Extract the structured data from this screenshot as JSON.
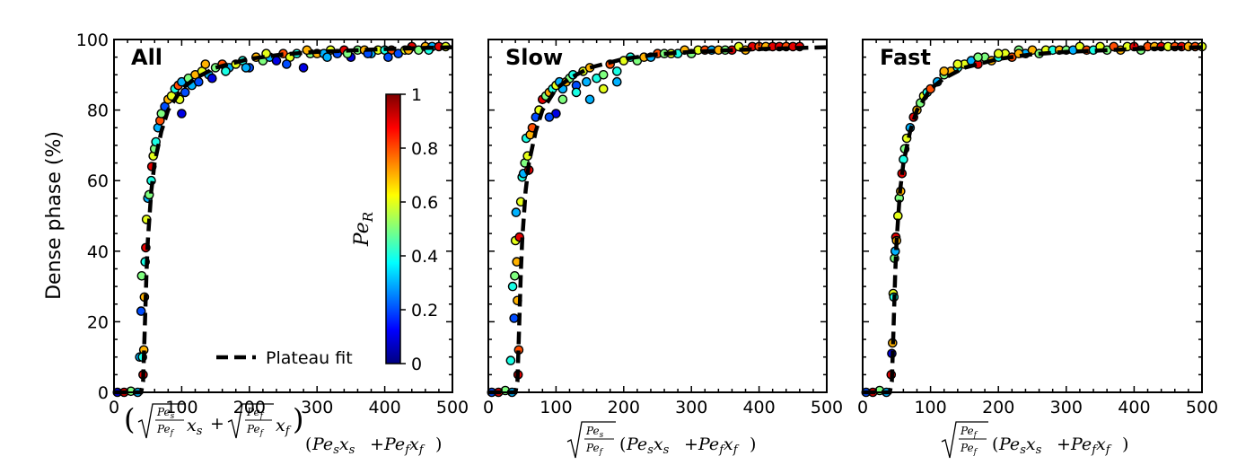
{
  "figure": {
    "ylabel": "Dense phase (%)",
    "legend_label": "Plateau fit",
    "colorbar": {
      "label": "Pe",
      "label_sub": "R",
      "ticks": [
        "0",
        "0.2",
        "0.4",
        "0.6",
        "0.8",
        "1"
      ],
      "colors": [
        "#00007f",
        "#0000ff",
        "#007fff",
        "#00ffff",
        "#7fff7f",
        "#ffff00",
        "#ff7f00",
        "#ff0000",
        "#7f0000"
      ]
    },
    "x_ticks": [
      "0",
      "100",
      "200",
      "300",
      "400",
      "500"
    ],
    "y_ticks": [
      "0",
      "20",
      "40",
      "60",
      "80",
      "100"
    ]
  },
  "chart_data": [
    {
      "type": "scatter",
      "title": "All",
      "xlabel": "(√(Pe_s/Pe_f) x_s + √(Pe_f/Pe_f) x_f)(Pe_s x_s + Pe_f x_f)",
      "xlim": [
        0,
        500
      ],
      "ylim": [
        0,
        100
      ],
      "grid": false,
      "color_by": "Pe_R",
      "fit": {
        "name": "Plateau fit",
        "x": [
          0,
          20,
          40,
          43,
          45,
          48,
          50,
          55,
          60,
          70,
          80,
          100,
          120,
          150,
          200,
          250,
          300,
          400,
          500
        ],
        "y": [
          0,
          0,
          0,
          3,
          15,
          34,
          43,
          57,
          65,
          74,
          80,
          86,
          89,
          92,
          94.5,
          95.8,
          96.5,
          97.3,
          97.8
        ]
      },
      "points": [
        [
          5,
          0,
          0.1
        ],
        [
          15,
          0,
          0.9
        ],
        [
          25,
          0.3,
          0.5
        ],
        [
          35,
          0,
          0.3
        ],
        [
          43,
          5,
          0.9
        ],
        [
          44,
          12,
          0.7
        ],
        [
          45,
          27,
          0.7
        ],
        [
          46,
          37,
          0.4
        ],
        [
          47,
          41,
          0.9
        ],
        [
          48,
          49,
          0.6
        ],
        [
          50,
          55,
          0.3
        ],
        [
          52,
          56,
          0.5
        ],
        [
          55,
          60,
          0.4
        ],
        [
          56,
          64,
          0.9
        ],
        [
          58,
          67,
          0.6
        ],
        [
          60,
          69,
          0.5
        ],
        [
          62,
          71,
          0.4
        ],
        [
          65,
          75,
          0.3
        ],
        [
          68,
          77,
          0.8
        ],
        [
          70,
          79,
          0.5
        ],
        [
          75,
          81,
          0.2
        ],
        [
          80,
          83,
          0.7
        ],
        [
          85,
          84,
          0.6
        ],
        [
          90,
          86,
          0.4
        ],
        [
          95,
          87,
          0.8
        ],
        [
          100,
          88,
          0.3
        ],
        [
          100,
          79,
          0.1
        ],
        [
          105,
          85,
          0.2
        ],
        [
          110,
          89,
          0.5
        ],
        [
          115,
          87,
          0.3
        ],
        [
          120,
          90,
          0.7
        ],
        [
          125,
          88,
          0.2
        ],
        [
          130,
          91,
          0.6
        ],
        [
          140,
          90,
          0.3
        ],
        [
          145,
          89,
          0.1
        ],
        [
          150,
          92,
          0.5
        ],
        [
          160,
          93,
          0.8
        ],
        [
          170,
          92,
          0.3
        ],
        [
          180,
          93,
          0.6
        ],
        [
          190,
          94,
          0.4
        ],
        [
          200,
          92,
          0.2
        ],
        [
          210,
          95,
          0.7
        ],
        [
          220,
          94,
          0.5
        ],
        [
          230,
          95,
          0.3
        ],
        [
          240,
          94,
          0.1
        ],
        [
          250,
          96,
          0.8
        ],
        [
          260,
          95,
          0.6
        ],
        [
          270,
          96,
          0.4
        ],
        [
          280,
          92,
          0.1
        ],
        [
          290,
          96,
          0.5
        ],
        [
          300,
          96,
          0.7
        ],
        [
          310,
          96,
          0.3
        ],
        [
          320,
          97,
          0.6
        ],
        [
          330,
          96,
          0.2
        ],
        [
          340,
          97,
          0.9
        ],
        [
          350,
          95,
          0.1
        ],
        [
          360,
          97,
          0.5
        ],
        [
          370,
          97,
          0.7
        ],
        [
          380,
          96,
          0.3
        ],
        [
          390,
          97,
          0.6
        ],
        [
          400,
          97,
          0.4
        ],
        [
          410,
          97,
          0.8
        ],
        [
          420,
          96,
          0.2
        ],
        [
          430,
          97,
          0.6
        ],
        [
          440,
          98,
          0.9
        ],
        [
          450,
          97,
          0.5
        ],
        [
          460,
          98,
          0.7
        ],
        [
          470,
          98,
          0.3
        ],
        [
          480,
          98,
          0.9
        ],
        [
          490,
          98,
          0.6
        ],
        [
          40,
          23,
          0.2
        ],
        [
          38,
          10,
          0.3
        ],
        [
          41,
          33,
          0.5
        ],
        [
          42,
          10,
          0.4
        ],
        [
          97,
          83,
          0.6
        ],
        [
          135,
          93,
          0.7
        ],
        [
          165,
          91,
          0.4
        ],
        [
          195,
          92,
          0.3
        ],
        [
          225,
          96,
          0.6
        ],
        [
          255,
          93,
          0.2
        ],
        [
          285,
          97,
          0.7
        ],
        [
          315,
          95,
          0.3
        ],
        [
          345,
          96,
          0.5
        ],
        [
          375,
          96,
          0.2
        ],
        [
          405,
          95,
          0.2
        ],
        [
          435,
          97,
          0.7
        ],
        [
          465,
          97,
          0.4
        ]
      ]
    },
    {
      "type": "scatter",
      "title": "Slow",
      "xlabel": "√(Pe_s/Pe_f) (Pe_s x_s + Pe_f x_f)",
      "xlim": [
        0,
        500
      ],
      "ylim": [
        0,
        100
      ],
      "grid": false,
      "color_by": "Pe_R",
      "fit": {
        "name": "Plateau fit",
        "x": [
          0,
          20,
          40,
          43,
          45,
          48,
          50,
          55,
          60,
          70,
          80,
          100,
          120,
          150,
          200,
          250,
          300,
          400,
          500
        ],
        "y": [
          0,
          0,
          0,
          3,
          15,
          34,
          43,
          57,
          65,
          74,
          80,
          86,
          89,
          92,
          94.5,
          95.8,
          96.5,
          97.3,
          97.8
        ]
      },
      "points": [
        [
          5,
          0,
          0.2
        ],
        [
          15,
          0,
          0.9
        ],
        [
          25,
          0.5,
          0.5
        ],
        [
          35,
          0,
          0.3
        ],
        [
          33,
          9,
          0.4
        ],
        [
          38,
          21,
          0.2
        ],
        [
          36,
          30,
          0.4
        ],
        [
          39,
          33,
          0.5
        ],
        [
          40,
          43,
          0.6
        ],
        [
          42,
          37,
          0.7
        ],
        [
          41,
          51,
          0.3
        ],
        [
          43,
          26,
          0.7
        ],
        [
          44,
          5,
          0.9
        ],
        [
          45,
          12,
          0.8
        ],
        [
          46,
          44,
          0.9
        ],
        [
          48,
          54,
          0.6
        ],
        [
          50,
          61,
          0.4
        ],
        [
          52,
          62,
          0.3
        ],
        [
          54,
          65,
          0.5
        ],
        [
          56,
          72,
          0.4
        ],
        [
          58,
          67,
          0.6
        ],
        [
          60,
          63,
          0.9
        ],
        [
          62,
          73,
          0.7
        ],
        [
          65,
          75,
          0.8
        ],
        [
          70,
          78,
          0.2
        ],
        [
          75,
          80,
          0.6
        ],
        [
          80,
          83,
          0.9
        ],
        [
          85,
          84,
          0.5
        ],
        [
          90,
          85,
          0.7
        ],
        [
          95,
          86,
          0.4
        ],
        [
          100,
          79,
          0.1
        ],
        [
          100,
          87,
          0.6
        ],
        [
          105,
          88,
          0.3
        ],
        [
          110,
          86,
          0.3
        ],
        [
          115,
          88,
          0.7
        ],
        [
          120,
          89,
          0.5
        ],
        [
          125,
          90,
          0.4
        ],
        [
          130,
          87,
          0.2
        ],
        [
          140,
          91,
          0.6
        ],
        [
          145,
          88,
          0.3
        ],
        [
          150,
          92,
          0.7
        ],
        [
          160,
          89,
          0.4
        ],
        [
          170,
          90,
          0.5
        ],
        [
          180,
          93,
          0.8
        ],
        [
          190,
          88,
          0.3
        ],
        [
          200,
          94,
          0.6
        ],
        [
          210,
          95,
          0.4
        ],
        [
          220,
          94,
          0.5
        ],
        [
          230,
          95,
          0.7
        ],
        [
          240,
          95,
          0.3
        ],
        [
          250,
          96,
          0.8
        ],
        [
          260,
          96,
          0.5
        ],
        [
          270,
          96,
          0.6
        ],
        [
          280,
          96,
          0.4
        ],
        [
          290,
          97,
          0.7
        ],
        [
          300,
          96,
          0.5
        ],
        [
          310,
          97,
          0.6
        ],
        [
          320,
          97,
          0.8
        ],
        [
          330,
          97,
          0.3
        ],
        [
          340,
          97,
          0.7
        ],
        [
          350,
          97,
          0.5
        ],
        [
          360,
          97,
          0.9
        ],
        [
          370,
          98,
          0.6
        ],
        [
          380,
          97,
          0.7
        ],
        [
          390,
          98,
          0.9
        ],
        [
          400,
          98,
          0.8
        ],
        [
          410,
          98,
          0.7
        ],
        [
          420,
          98,
          0.9
        ],
        [
          430,
          98,
          0.9
        ],
        [
          440,
          98,
          0.8
        ],
        [
          450,
          98,
          0.9
        ],
        [
          460,
          98,
          0.9
        ],
        [
          90,
          78,
          0.2
        ],
        [
          110,
          83,
          0.5
        ],
        [
          130,
          85,
          0.4
        ],
        [
          150,
          83,
          0.3
        ],
        [
          170,
          86,
          0.6
        ],
        [
          190,
          91,
          0.4
        ]
      ]
    },
    {
      "type": "scatter",
      "title": "Fast",
      "xlabel": "√(Pe_f/Pe_f) (Pe_s x_s + Pe_f x_f)",
      "xlim": [
        0,
        500
      ],
      "ylim": [
        0,
        100
      ],
      "grid": false,
      "color_by": "Pe_R",
      "fit": {
        "name": "Plateau fit",
        "x": [
          0,
          20,
          40,
          43,
          45,
          48,
          50,
          55,
          60,
          70,
          80,
          100,
          120,
          150,
          200,
          250,
          300,
          400,
          500
        ],
        "y": [
          0,
          0,
          0,
          3,
          15,
          34,
          43,
          57,
          65,
          74,
          80,
          86,
          89,
          92,
          94.5,
          95.8,
          96.5,
          97.3,
          97.8
        ]
      },
      "points": [
        [
          5,
          0,
          0.2
        ],
        [
          15,
          0,
          0.9
        ],
        [
          25,
          0.5,
          0.5
        ],
        [
          35,
          0,
          0.3
        ],
        [
          42,
          5,
          0.9
        ],
        [
          43,
          11,
          0.1
        ],
        [
          44,
          14,
          0.7
        ],
        [
          45,
          28,
          0.6
        ],
        [
          46,
          27,
          0.4
        ],
        [
          47,
          38,
          0.5
        ],
        [
          48,
          40,
          0.3
        ],
        [
          49,
          44,
          0.9
        ],
        [
          50,
          43,
          0.7
        ],
        [
          52,
          50,
          0.6
        ],
        [
          54,
          55,
          0.5
        ],
        [
          56,
          57,
          0.7
        ],
        [
          58,
          62,
          0.9
        ],
        [
          60,
          66,
          0.4
        ],
        [
          62,
          69,
          0.5
        ],
        [
          65,
          72,
          0.6
        ],
        [
          70,
          75,
          0.3
        ],
        [
          75,
          78,
          0.9
        ],
        [
          80,
          80,
          0.7
        ],
        [
          85,
          82,
          0.5
        ],
        [
          90,
          84,
          0.6
        ],
        [
          95,
          85,
          0.4
        ],
        [
          100,
          86,
          0.8
        ],
        [
          110,
          88,
          0.3
        ],
        [
          120,
          90,
          0.5
        ],
        [
          130,
          91,
          0.7
        ],
        [
          140,
          92,
          0.4
        ],
        [
          150,
          93,
          0.6
        ],
        [
          160,
          94,
          0.3
        ],
        [
          170,
          93,
          0.9
        ],
        [
          180,
          95,
          0.5
        ],
        [
          190,
          94,
          0.7
        ],
        [
          200,
          95,
          0.4
        ],
        [
          210,
          96,
          0.6
        ],
        [
          220,
          95,
          0.8
        ],
        [
          230,
          97,
          0.5
        ],
        [
          240,
          96,
          0.3
        ],
        [
          250,
          97,
          0.7
        ],
        [
          260,
          96,
          0.5
        ],
        [
          270,
          97,
          0.6
        ],
        [
          280,
          97,
          0.4
        ],
        [
          290,
          97,
          0.7
        ],
        [
          300,
          97,
          0.5
        ],
        [
          310,
          97,
          0.3
        ],
        [
          320,
          98,
          0.6
        ],
        [
          330,
          97,
          0.8
        ],
        [
          340,
          97,
          0.4
        ],
        [
          350,
          98,
          0.6
        ],
        [
          360,
          97,
          0.5
        ],
        [
          370,
          98,
          0.8
        ],
        [
          380,
          97,
          0.7
        ],
        [
          390,
          98,
          0.6
        ],
        [
          400,
          98,
          0.9
        ],
        [
          410,
          97,
          0.5
        ],
        [
          420,
          98,
          0.8
        ],
        [
          430,
          98,
          0.7
        ],
        [
          440,
          98,
          0.9
        ],
        [
          450,
          98,
          0.6
        ],
        [
          460,
          98,
          0.8
        ],
        [
          470,
          98,
          0.9
        ],
        [
          480,
          98,
          0.7
        ],
        [
          490,
          98,
          0.8
        ],
        [
          500,
          98,
          0.6
        ],
        [
          120,
          91,
          0.7
        ],
        [
          140,
          93,
          0.6
        ],
        [
          170,
          95,
          0.5
        ],
        [
          200,
          96,
          0.6
        ],
        [
          230,
          96,
          0.7
        ]
      ]
    }
  ]
}
